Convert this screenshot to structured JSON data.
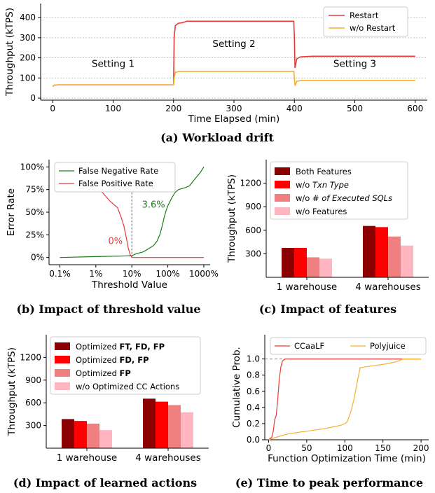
{
  "chart_data": [
    {
      "id": "a",
      "type": "line",
      "caption": "(a) Workload drift",
      "xlabel": "Time Elapsed (min)",
      "ylabel": "Throughput (kTPS)",
      "xlim": [
        -20,
        620
      ],
      "ylim": [
        -10,
        470
      ],
      "xticks": [
        0,
        100,
        200,
        300,
        400,
        500,
        600
      ],
      "yticks": [
        0,
        100,
        200,
        300,
        400
      ],
      "grid": "horizontal dashed",
      "legend": "top-right",
      "annotations": [
        {
          "text": "Setting 1",
          "x": 100,
          "y": 155
        },
        {
          "text": "Setting 2",
          "x": 300,
          "y": 255
        },
        {
          "text": "Setting 3",
          "x": 500,
          "y": 155
        }
      ],
      "vlines": [
        200,
        400
      ],
      "series": [
        {
          "name": "Restart",
          "color": "#e8393a",
          "points": [
            [
              0,
              58
            ],
            [
              3,
              65
            ],
            [
              10,
              66
            ],
            [
              200,
              66
            ],
            [
              201,
              300
            ],
            [
              203,
              360
            ],
            [
              208,
              372
            ],
            [
              215,
              375
            ],
            [
              222,
              382
            ],
            [
              399,
              382
            ],
            [
              400,
              300
            ],
            [
              401,
              150
            ],
            [
              404,
              195
            ],
            [
              410,
              205
            ],
            [
              430,
              208
            ],
            [
              600,
              208
            ]
          ]
        },
        {
          "name": "w/o Restart",
          "color": "#f5b02e",
          "points": [
            [
              0,
              58
            ],
            [
              3,
              65
            ],
            [
              10,
              66
            ],
            [
              200,
              66
            ],
            [
              201,
              100
            ],
            [
              203,
              128
            ],
            [
              210,
              133
            ],
            [
              399,
              133
            ],
            [
              400,
              100
            ],
            [
              401,
              62
            ],
            [
              404,
              84
            ],
            [
              412,
              88
            ],
            [
              600,
              88
            ]
          ]
        }
      ]
    },
    {
      "id": "b",
      "type": "line",
      "caption": "(b) Impact of threshold value",
      "xlabel": "Threshold Value",
      "ylabel": "Error Rate",
      "xscale": "log",
      "xlim": [
        0.0005,
        15
      ],
      "ylim": [
        -8,
        108
      ],
      "xticks": [
        0.001,
        0.01,
        0.1,
        1,
        10
      ],
      "xticklabels": [
        "0.1%",
        "1%",
        "10%",
        "100%",
        "1000%"
      ],
      "yticks": [
        0,
        25,
        50,
        75,
        100
      ],
      "yticklabels": [
        "0%",
        "25%",
        "50%",
        "75%",
        "100%"
      ],
      "vline": 0.1,
      "legend": "top-left",
      "annotations": [
        {
          "text": "3.6%",
          "x": 0.4,
          "y": 55,
          "color": "#1a7f1a"
        },
        {
          "text": "0%",
          "x": 0.035,
          "y": 15,
          "color": "#e8393a"
        }
      ],
      "series": [
        {
          "name": "False Negative Rate",
          "color": "#1a7f1a",
          "points": [
            [
              0.001,
              0
            ],
            [
              0.01,
              1
            ],
            [
              0.05,
              1.5
            ],
            [
              0.1,
              2
            ],
            [
              0.13,
              4
            ],
            [
              0.16,
              5
            ],
            [
              0.2,
              6
            ],
            [
              0.25,
              8
            ],
            [
              0.3,
              10
            ],
            [
              0.4,
              13
            ],
            [
              0.5,
              18
            ],
            [
              0.6,
              25
            ],
            [
              0.7,
              35
            ],
            [
              0.8,
              45
            ],
            [
              0.9,
              52
            ],
            [
              1.0,
              57
            ],
            [
              1.3,
              66
            ],
            [
              1.6,
              72
            ],
            [
              2.0,
              75
            ],
            [
              3,
              77
            ],
            [
              4,
              79
            ],
            [
              5,
              84
            ],
            [
              6,
              88
            ],
            [
              8,
              94
            ],
            [
              10,
              100
            ]
          ]
        },
        {
          "name": "False Positive Rate",
          "color": "#e8393a",
          "points": [
            [
              0.001,
              100
            ],
            [
              0.002,
              93
            ],
            [
              0.004,
              87
            ],
            [
              0.008,
              80
            ],
            [
              0.015,
              72
            ],
            [
              0.025,
              62
            ],
            [
              0.04,
              55
            ],
            [
              0.05,
              45
            ],
            [
              0.06,
              35
            ],
            [
              0.07,
              22
            ],
            [
              0.08,
              10
            ],
            [
              0.09,
              3
            ],
            [
              0.1,
              0
            ],
            [
              10,
              0
            ]
          ]
        }
      ]
    },
    {
      "id": "c",
      "type": "bar",
      "caption": "(c) Impact of features",
      "ylabel": "Throughput (kTPS)",
      "categories": [
        "1 warehouse",
        "4 warehouses"
      ],
      "ylim": [
        0,
        1500
      ],
      "yticks": [
        300,
        600,
        900,
        1200
      ],
      "legend": "top-left",
      "series": [
        {
          "name": "Both Features",
          "color": "#8b0000",
          "values": [
            375,
            655
          ]
        },
        {
          "name": "w/o ",
          "name_italic": "Txn Type",
          "color": "#ff0000",
          "values": [
            375,
            640
          ]
        },
        {
          "name": "w/o ",
          "name_italic": "# of Executed SQLs",
          "color": "#f08080",
          "values": [
            255,
            520
          ]
        },
        {
          "name": "w/o Features",
          "color": "#ffb6c1",
          "values": [
            238,
            405
          ]
        }
      ]
    },
    {
      "id": "d",
      "type": "bar",
      "caption": "(d) Impact of learned actions",
      "ylabel": "Throughput (kTPS)",
      "categories": [
        "1 warehouse",
        "4 warehouses"
      ],
      "ylim": [
        0,
        1500
      ],
      "yticks": [
        300,
        600,
        900,
        1200
      ],
      "legend": "top-left",
      "series": [
        {
          "name": "Optimized ",
          "name_math": "FT, FD, FP",
          "color": "#8b0000",
          "values": [
            385,
            655
          ]
        },
        {
          "name": "Optimized ",
          "name_math": "FD, FP",
          "color": "#ff0000",
          "values": [
            360,
            615
          ]
        },
        {
          "name": "Optimized ",
          "name_math": "FP",
          "color": "#f08080",
          "values": [
            325,
            570
          ]
        },
        {
          "name": "w/o Optimized CC Actions",
          "color": "#ffb6c1",
          "values": [
            240,
            475
          ]
        }
      ]
    },
    {
      "id": "e",
      "type": "line",
      "caption": "(e) Time to peak performance",
      "xlabel": "Function Optimization Time (min)",
      "ylabel": "Cumulative Prob.",
      "xlim": [
        -5,
        210
      ],
      "ylim": [
        0,
        1.3
      ],
      "xticks": [
        0,
        50,
        100,
        150,
        200
      ],
      "yticks": [
        0.0,
        0.2,
        0.4,
        0.6,
        0.8,
        1.0
      ],
      "yticklabels": [
        "0.0",
        "0.2",
        "0.4",
        "0.6",
        "0.8",
        "1.0"
      ],
      "hline": 1.0,
      "legend": "top",
      "series": [
        {
          "name": "CCaaLF",
          "color": "#e8393a",
          "points": [
            [
              0,
              0
            ],
            [
              4,
              0.03
            ],
            [
              6,
              0.1
            ],
            [
              8,
              0.25
            ],
            [
              10,
              0.3
            ],
            [
              12,
              0.5
            ],
            [
              14,
              0.75
            ],
            [
              16,
              0.9
            ],
            [
              18,
              0.97
            ],
            [
              20,
              0.99
            ],
            [
              22,
              1.0
            ],
            [
              200,
              1.0
            ]
          ]
        },
        {
          "name": "Polyjuice",
          "color": "#f5b02e",
          "points": [
            [
              0,
              0
            ],
            [
              10,
              0.03
            ],
            [
              20,
              0.06
            ],
            [
              30,
              0.08
            ],
            [
              45,
              0.1
            ],
            [
              60,
              0.12
            ],
            [
              75,
              0.14
            ],
            [
              85,
              0.16
            ],
            [
              95,
              0.18
            ],
            [
              100,
              0.2
            ],
            [
              103,
              0.22
            ],
            [
              106,
              0.3
            ],
            [
              108,
              0.35
            ],
            [
              112,
              0.5
            ],
            [
              116,
              0.7
            ],
            [
              118,
              0.8
            ],
            [
              120,
              0.89
            ],
            [
              125,
              0.9
            ],
            [
              140,
              0.92
            ],
            [
              155,
              0.94
            ],
            [
              165,
              0.96
            ],
            [
              172,
              0.98
            ],
            [
              176,
              1.0
            ],
            [
              200,
              1.0
            ]
          ]
        }
      ]
    }
  ]
}
